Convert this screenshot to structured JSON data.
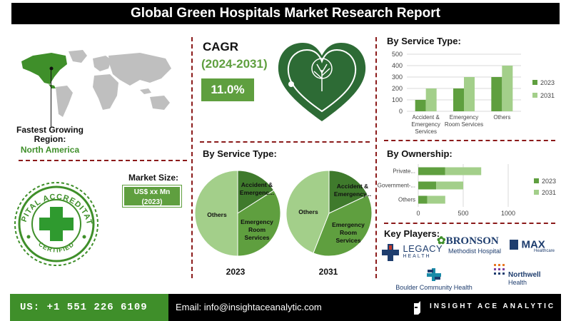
{
  "header": {
    "title": "Global Green Hospitals Market Research Report"
  },
  "left": {
    "fastest_label_line1": "Fastest Growing",
    "fastest_label_line2": "Region:",
    "fastest_region": "North America",
    "market_size_label": "Market Size:",
    "market_size_value_line1": "US$ xx Mn",
    "market_size_value_line2": "(2023)",
    "badge_top_text": "HOSPITAL ACCREDITATION",
    "badge_bottom_text": "CERTIFIED"
  },
  "cagr": {
    "label": "CAGR",
    "period": "(2024-2031)",
    "value": "11.0%"
  },
  "key_players": {
    "title": "Key Players:",
    "logos": [
      {
        "name": "BRONSON",
        "sub": "Methodist Hospital"
      },
      {
        "name": "MAX",
        "sub": "Healthcare"
      },
      {
        "name": "LEGACY",
        "sub": "HEALTH"
      },
      {
        "name": "Boulder Community Health",
        "sub": ""
      },
      {
        "name": "Northwell",
        "sub": "Health"
      }
    ]
  },
  "footer": {
    "phone": "US: +1 551 226 6109",
    "email": "Email: info@insightaceanalytic.com",
    "brand": "INSIGHT ACE ANALYTIC"
  },
  "colors": {
    "dark_green": "#3f7a2c",
    "mid_green": "#5f9f3f",
    "light_green": "#a3cf8a",
    "heart_green": "#2d6b35",
    "accent_red": "#8b1a1a"
  },
  "chart_data": [
    {
      "id": "service-bar",
      "type": "bar",
      "title": "By Service Type:",
      "categories": [
        "Accident & Emergency Services",
        "Emergency Room Services",
        "Others"
      ],
      "category_labels": [
        [
          "Accident &",
          "Emergency",
          "Services"
        ],
        [
          "Emergency",
          "Room Services"
        ],
        [
          "Others"
        ]
      ],
      "series": [
        {
          "name": "2023",
          "values": [
            100,
            200,
            300
          ]
        },
        {
          "name": "2031",
          "values": [
            200,
            300,
            400
          ]
        }
      ],
      "ylim": [
        0,
        500
      ],
      "yticks": [
        0,
        100,
        200,
        300,
        400,
        500
      ],
      "grid": true,
      "legend": "right"
    },
    {
      "id": "ownership-bar",
      "type": "bar",
      "orientation": "horizontal",
      "title": "By Ownership:",
      "categories": [
        "Private...",
        "Government-...",
        "Others"
      ],
      "series": [
        {
          "name": "2023",
          "values": [
            300,
            200,
            100
          ]
        },
        {
          "name": "2031",
          "values": [
            400,
            300,
            200
          ]
        }
      ],
      "stacked": true,
      "xlim": [
        0,
        1000
      ],
      "xticks": [
        0,
        500,
        1000
      ],
      "grid": true,
      "legend": "right"
    },
    {
      "id": "service-pie-2023",
      "type": "pie",
      "title": "By Service Type:",
      "caption": "2023",
      "slices": [
        {
          "label": "Accident & Emergenc...",
          "value": 16
        },
        {
          "label": "Emergency Room Services",
          "value": 34
        },
        {
          "label": "Others",
          "value": 50
        }
      ]
    },
    {
      "id": "service-pie-2031",
      "type": "pie",
      "caption": "2031",
      "slices": [
        {
          "label": "Accident & Emergency...",
          "value": 18
        },
        {
          "label": "Emergency Room Services",
          "value": 38
        },
        {
          "label": "Others",
          "value": 44
        }
      ]
    }
  ]
}
